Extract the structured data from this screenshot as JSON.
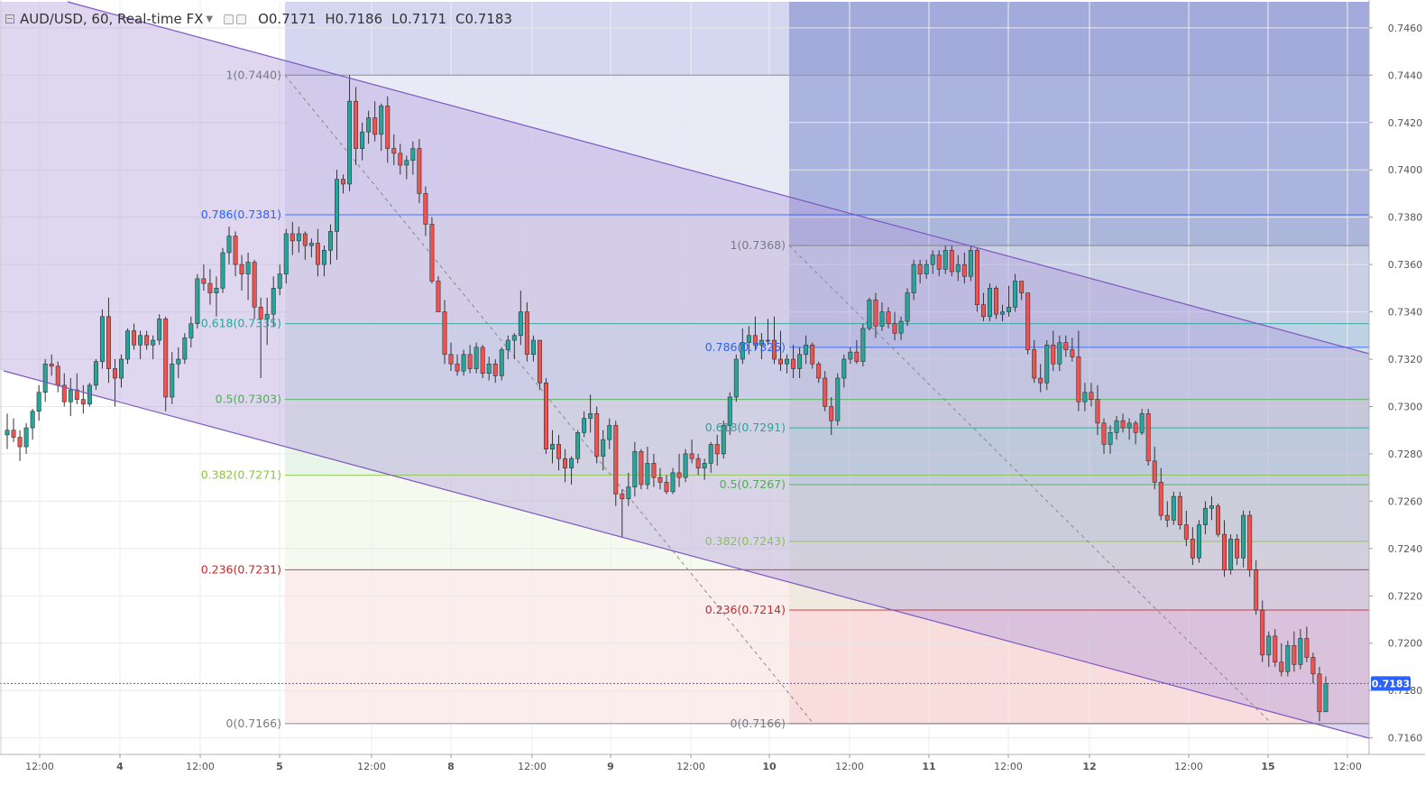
{
  "header": {
    "symbol": "AUD/USD, 60, Real-time FX",
    "open": "O0.7171",
    "high": "H0.7186",
    "low": "L0.7171",
    "close": "C0.7183"
  },
  "colors": {
    "up": "#26a69a",
    "down": "#ef5350",
    "channel_line": "#7e57c2",
    "channel_fill": "#b39ddb",
    "last_price_badge": "#2962ff"
  },
  "chart_data": {
    "type": "candlestick",
    "instrument": "AUD/USD",
    "interval": "60",
    "ylim": [
      0.7153,
      0.7471
    ],
    "y_ticks": [
      "0.7460",
      "0.7440",
      "0.7420",
      "0.7400",
      "0.7380",
      "0.7360",
      "0.7340",
      "0.7320",
      "0.7300",
      "0.7280",
      "0.7260",
      "0.7240",
      "0.7220",
      "0.7200",
      "0.7180",
      "0.7160"
    ],
    "x_ticks": [
      "12:00",
      "4",
      "12:00",
      "5",
      "12:00",
      "8",
      "12:00",
      "9",
      "12:00",
      "10",
      "12:00",
      "11",
      "12:00",
      "12",
      "12:00",
      "15",
      "12:00"
    ],
    "last_price": "0.7183",
    "fib_retracements": [
      {
        "from": 0.744,
        "to": 0.7166,
        "levels": [
          {
            "ratio": 1,
            "label": "1(0.7440)",
            "price": 0.744,
            "color": "#787b86"
          },
          {
            "ratio": 0.786,
            "label": "0.786(0.7381)",
            "price": 0.7381,
            "color": "#2962ff"
          },
          {
            "ratio": 0.618,
            "label": "0.618(0.7335)",
            "price": 0.7335,
            "color": "#26a69a"
          },
          {
            "ratio": 0.5,
            "label": "0.5(0.7303)",
            "price": 0.7303,
            "color": "#4caf50"
          },
          {
            "ratio": 0.382,
            "label": "0.382(0.7271)",
            "price": 0.7271,
            "color": "#8bc34a"
          },
          {
            "ratio": 0.236,
            "label": "0.236(0.7231)",
            "price": 0.7231,
            "color": "#c62828"
          },
          {
            "ratio": 0,
            "label": "0(0.7166)",
            "price": 0.7166,
            "color": "#787b86"
          }
        ]
      },
      {
        "from": 0.7368,
        "to": 0.7166,
        "levels": [
          {
            "ratio": 1,
            "label": "1(0.7368)",
            "price": 0.7368,
            "color": "#787b86"
          },
          {
            "ratio": 0.786,
            "label": "0.786(0.7325)",
            "price": 0.7325,
            "color": "#2962ff"
          },
          {
            "ratio": 0.618,
            "label": "0.618(0.7291)",
            "price": 0.7291,
            "color": "#26a69a"
          },
          {
            "ratio": 0.5,
            "label": "0.5(0.7267)",
            "price": 0.7267,
            "color": "#4caf50"
          },
          {
            "ratio": 0.382,
            "label": "0.382(0.7243)",
            "price": 0.7243,
            "color": "#8bc34a"
          },
          {
            "ratio": 0.236,
            "label": "0.236(0.7214)",
            "price": 0.7214,
            "color": "#c62828"
          },
          {
            "ratio": 0,
            "label": "0(0.7166)",
            "price": 0.7166,
            "color": "#787b86"
          }
        ]
      }
    ],
    "candles": [
      [
        0.7288,
        0.7297,
        0.7282,
        0.729
      ],
      [
        0.729,
        0.7295,
        0.7285,
        0.7287
      ],
      [
        0.7287,
        0.729,
        0.7277,
        0.7283
      ],
      [
        0.7283,
        0.7293,
        0.728,
        0.7291
      ],
      [
        0.7291,
        0.7299,
        0.7286,
        0.7298
      ],
      [
        0.7298,
        0.7309,
        0.7294,
        0.7306
      ],
      [
        0.7306,
        0.732,
        0.7302,
        0.7318
      ],
      [
        0.7318,
        0.7322,
        0.7313,
        0.7317
      ],
      [
        0.7317,
        0.7319,
        0.7306,
        0.7309
      ],
      [
        0.7309,
        0.7314,
        0.73,
        0.7302
      ],
      [
        0.7302,
        0.7312,
        0.7296,
        0.7307
      ],
      [
        0.7307,
        0.7314,
        0.7301,
        0.7303
      ],
      [
        0.7303,
        0.7309,
        0.7297,
        0.7301
      ],
      [
        0.7301,
        0.731,
        0.73,
        0.7309
      ],
      [
        0.7309,
        0.732,
        0.7307,
        0.7319
      ],
      [
        0.7319,
        0.7341,
        0.7316,
        0.7338
      ],
      [
        0.7338,
        0.7346,
        0.731,
        0.7316
      ],
      [
        0.7316,
        0.732,
        0.73,
        0.7312
      ],
      [
        0.7312,
        0.7322,
        0.7308,
        0.732
      ],
      [
        0.732,
        0.7333,
        0.7318,
        0.7332
      ],
      [
        0.7332,
        0.7335,
        0.7324,
        0.7326
      ],
      [
        0.7326,
        0.7332,
        0.732,
        0.733
      ],
      [
        0.733,
        0.7332,
        0.7324,
        0.7326
      ],
      [
        0.7326,
        0.733,
        0.732,
        0.7328
      ],
      [
        0.7328,
        0.7339,
        0.7326,
        0.7337
      ],
      [
        0.7337,
        0.7338,
        0.7298,
        0.7304
      ],
      [
        0.7304,
        0.7323,
        0.7301,
        0.7318
      ],
      [
        0.7318,
        0.7325,
        0.7312,
        0.732
      ],
      [
        0.732,
        0.7331,
        0.7318,
        0.7329
      ],
      [
        0.7329,
        0.7338,
        0.7325,
        0.7335
      ],
      [
        0.7335,
        0.7356,
        0.7333,
        0.7354
      ],
      [
        0.7354,
        0.736,
        0.7349,
        0.7352
      ],
      [
        0.7352,
        0.7358,
        0.7343,
        0.7348
      ],
      [
        0.7348,
        0.7355,
        0.7338,
        0.735
      ],
      [
        0.735,
        0.7367,
        0.7348,
        0.7365
      ],
      [
        0.7365,
        0.7376,
        0.736,
        0.7372
      ],
      [
        0.7372,
        0.7374,
        0.7355,
        0.736
      ],
      [
        0.736,
        0.7364,
        0.7349,
        0.7356
      ],
      [
        0.7356,
        0.7365,
        0.7345,
        0.7361
      ],
      [
        0.7361,
        0.7362,
        0.7337,
        0.7342
      ],
      [
        0.7342,
        0.7346,
        0.7312,
        0.7337
      ],
      [
        0.7337,
        0.7346,
        0.7326,
        0.7339
      ],
      [
        0.7339,
        0.7355,
        0.7334,
        0.735
      ],
      [
        0.735,
        0.736,
        0.7347,
        0.7356
      ],
      [
        0.7356,
        0.7375,
        0.7352,
        0.7373
      ],
      [
        0.7373,
        0.7378,
        0.7364,
        0.737
      ],
      [
        0.737,
        0.7376,
        0.7365,
        0.7373
      ],
      [
        0.7373,
        0.7374,
        0.7362,
        0.7368
      ],
      [
        0.7368,
        0.7371,
        0.7363,
        0.7369
      ],
      [
        0.7369,
        0.7375,
        0.7355,
        0.736
      ],
      [
        0.736,
        0.7368,
        0.7355,
        0.7366
      ],
      [
        0.7366,
        0.7377,
        0.736,
        0.7374
      ],
      [
        0.7374,
        0.74,
        0.7362,
        0.7396
      ],
      [
        0.7396,
        0.7398,
        0.739,
        0.7394
      ],
      [
        0.7394,
        0.744,
        0.7391,
        0.7429
      ],
      [
        0.7429,
        0.7435,
        0.7402,
        0.7409
      ],
      [
        0.7409,
        0.742,
        0.7404,
        0.7416
      ],
      [
        0.7416,
        0.7425,
        0.7411,
        0.7422
      ],
      [
        0.7422,
        0.7429,
        0.7412,
        0.7415
      ],
      [
        0.7415,
        0.7428,
        0.7408,
        0.7427
      ],
      [
        0.7427,
        0.7431,
        0.7403,
        0.7409
      ],
      [
        0.7409,
        0.7415,
        0.7402,
        0.7407
      ],
      [
        0.7407,
        0.7411,
        0.7398,
        0.7402
      ],
      [
        0.7402,
        0.7406,
        0.7396,
        0.7404
      ],
      [
        0.7404,
        0.7412,
        0.7398,
        0.7409
      ],
      [
        0.7409,
        0.7413,
        0.7386,
        0.739
      ],
      [
        0.739,
        0.7393,
        0.7372,
        0.7377
      ],
      [
        0.7377,
        0.738,
        0.7352,
        0.7353
      ],
      [
        0.7353,
        0.7355,
        0.734,
        0.734
      ],
      [
        0.734,
        0.7345,
        0.7318,
        0.7322
      ],
      [
        0.7322,
        0.7327,
        0.7315,
        0.7318
      ],
      [
        0.7318,
        0.7322,
        0.7313,
        0.7315
      ],
      [
        0.7315,
        0.7324,
        0.7313,
        0.7322
      ],
      [
        0.7322,
        0.7326,
        0.7314,
        0.7316
      ],
      [
        0.7316,
        0.7327,
        0.7314,
        0.7325
      ],
      [
        0.7325,
        0.7326,
        0.7312,
        0.7314
      ],
      [
        0.7314,
        0.7321,
        0.7311,
        0.7318
      ],
      [
        0.7318,
        0.732,
        0.731,
        0.7313
      ],
      [
        0.7313,
        0.7325,
        0.7311,
        0.7324
      ],
      [
        0.7324,
        0.733,
        0.732,
        0.7328
      ],
      [
        0.7328,
        0.7331,
        0.732,
        0.733
      ],
      [
        0.733,
        0.7349,
        0.7326,
        0.734
      ],
      [
        0.734,
        0.7344,
        0.7319,
        0.7322
      ],
      [
        0.7322,
        0.733,
        0.7319,
        0.7328
      ],
      [
        0.7328,
        0.7328,
        0.7307,
        0.731
      ],
      [
        0.731,
        0.7312,
        0.728,
        0.7282
      ],
      [
        0.7282,
        0.729,
        0.7276,
        0.7284
      ],
      [
        0.7284,
        0.7288,
        0.7273,
        0.7278
      ],
      [
        0.7278,
        0.7282,
        0.7268,
        0.7274
      ],
      [
        0.7274,
        0.7279,
        0.7267,
        0.7278
      ],
      [
        0.7278,
        0.729,
        0.7276,
        0.7289
      ],
      [
        0.7289,
        0.7298,
        0.7287,
        0.7295
      ],
      [
        0.7295,
        0.7305,
        0.7289,
        0.7297
      ],
      [
        0.7297,
        0.73,
        0.7276,
        0.7279
      ],
      [
        0.7279,
        0.729,
        0.7273,
        0.7286
      ],
      [
        0.7286,
        0.7295,
        0.7282,
        0.7292
      ],
      [
        0.7292,
        0.7294,
        0.7258,
        0.7263
      ],
      [
        0.7263,
        0.7265,
        0.7245,
        0.7261
      ],
      [
        0.7261,
        0.7272,
        0.7258,
        0.7266
      ],
      [
        0.7266,
        0.7285,
        0.7262,
        0.7281
      ],
      [
        0.7281,
        0.7282,
        0.7265,
        0.7267
      ],
      [
        0.7267,
        0.7283,
        0.7265,
        0.7276
      ],
      [
        0.7276,
        0.728,
        0.7266,
        0.727
      ],
      [
        0.727,
        0.7274,
        0.7265,
        0.7268
      ],
      [
        0.7268,
        0.7271,
        0.7263,
        0.7264
      ],
      [
        0.7264,
        0.7274,
        0.7263,
        0.7272
      ],
      [
        0.7272,
        0.728,
        0.7266,
        0.727
      ],
      [
        0.727,
        0.7282,
        0.7268,
        0.728
      ],
      [
        0.728,
        0.7286,
        0.7276,
        0.7278
      ],
      [
        0.7278,
        0.728,
        0.7271,
        0.7274
      ],
      [
        0.7274,
        0.7278,
        0.7269,
        0.7276
      ],
      [
        0.7276,
        0.7285,
        0.7272,
        0.7284
      ],
      [
        0.7284,
        0.7288,
        0.7275,
        0.728
      ],
      [
        0.728,
        0.7294,
        0.7278,
        0.7292
      ],
      [
        0.7292,
        0.7306,
        0.7288,
        0.7304
      ],
      [
        0.7304,
        0.7322,
        0.7302,
        0.732
      ],
      [
        0.732,
        0.7333,
        0.7318,
        0.7327
      ],
      [
        0.7327,
        0.7334,
        0.7322,
        0.733
      ],
      [
        0.733,
        0.7338,
        0.7324,
        0.7326
      ],
      [
        0.7326,
        0.7331,
        0.732,
        0.7328
      ],
      [
        0.7328,
        0.7337,
        0.7326,
        0.7328
      ],
      [
        0.7328,
        0.7338,
        0.7318,
        0.732
      ],
      [
        0.732,
        0.7332,
        0.7315,
        0.7318
      ],
      [
        0.7318,
        0.7322,
        0.7314,
        0.732
      ],
      [
        0.732,
        0.7326,
        0.7312,
        0.7316
      ],
      [
        0.7316,
        0.7325,
        0.7312,
        0.7322
      ],
      [
        0.7322,
        0.733,
        0.7318,
        0.7326
      ],
      [
        0.7326,
        0.7327,
        0.7316,
        0.7318
      ],
      [
        0.7318,
        0.7319,
        0.731,
        0.7312
      ],
      [
        0.7312,
        0.7315,
        0.7298,
        0.73
      ],
      [
        0.73,
        0.7304,
        0.7288,
        0.7294
      ],
      [
        0.7294,
        0.7314,
        0.7292,
        0.7312
      ],
      [
        0.7312,
        0.7322,
        0.7308,
        0.732
      ],
      [
        0.732,
        0.7325,
        0.7318,
        0.7323
      ],
      [
        0.7323,
        0.7328,
        0.7318,
        0.7319
      ],
      [
        0.7319,
        0.7335,
        0.7317,
        0.7333
      ],
      [
        0.7333,
        0.7346,
        0.7332,
        0.7345
      ],
      [
        0.7345,
        0.7348,
        0.7329,
        0.7334
      ],
      [
        0.7334,
        0.7344,
        0.7332,
        0.734
      ],
      [
        0.734,
        0.7342,
        0.7333,
        0.7335
      ],
      [
        0.7335,
        0.734,
        0.7328,
        0.7331
      ],
      [
        0.7331,
        0.7338,
        0.7328,
        0.7336
      ],
      [
        0.7336,
        0.735,
        0.7334,
        0.7348
      ],
      [
        0.7348,
        0.7362,
        0.7345,
        0.736
      ],
      [
        0.736,
        0.7362,
        0.7352,
        0.7356
      ],
      [
        0.7356,
        0.7362,
        0.7354,
        0.736
      ],
      [
        0.736,
        0.7366,
        0.7356,
        0.7364
      ],
      [
        0.7364,
        0.7366,
        0.7355,
        0.7358
      ],
      [
        0.7358,
        0.7368,
        0.7356,
        0.7366
      ],
      [
        0.7366,
        0.7368,
        0.7355,
        0.7357
      ],
      [
        0.7357,
        0.7364,
        0.7353,
        0.736
      ],
      [
        0.736,
        0.7365,
        0.7352,
        0.7355
      ],
      [
        0.7355,
        0.7368,
        0.7353,
        0.7366
      ],
      [
        0.7366,
        0.7367,
        0.734,
        0.7343
      ],
      [
        0.7343,
        0.7348,
        0.7336,
        0.7338
      ],
      [
        0.7338,
        0.7352,
        0.7336,
        0.735
      ],
      [
        0.735,
        0.7351,
        0.7337,
        0.7339
      ],
      [
        0.7339,
        0.7343,
        0.7336,
        0.734
      ],
      [
        0.734,
        0.7351,
        0.7338,
        0.7342
      ],
      [
        0.7342,
        0.7356,
        0.734,
        0.7353
      ],
      [
        0.7353,
        0.7353,
        0.7345,
        0.7348
      ],
      [
        0.7348,
        0.7348,
        0.7322,
        0.7324
      ],
      [
        0.7324,
        0.7328,
        0.731,
        0.7312
      ],
      [
        0.7312,
        0.7318,
        0.7306,
        0.731
      ],
      [
        0.731,
        0.7328,
        0.7307,
        0.7326
      ],
      [
        0.7326,
        0.7332,
        0.7315,
        0.7318
      ],
      [
        0.7318,
        0.733,
        0.7315,
        0.7327
      ],
      [
        0.7327,
        0.733,
        0.7321,
        0.7324
      ],
      [
        0.7324,
        0.7329,
        0.7319,
        0.7321
      ],
      [
        0.7321,
        0.7332,
        0.7298,
        0.7302
      ],
      [
        0.7302,
        0.731,
        0.7298,
        0.7306
      ],
      [
        0.7306,
        0.731,
        0.73,
        0.7303
      ],
      [
        0.7303,
        0.7309,
        0.7288,
        0.7293
      ],
      [
        0.7293,
        0.7295,
        0.728,
        0.7284
      ],
      [
        0.7284,
        0.7292,
        0.728,
        0.7289
      ],
      [
        0.7289,
        0.7296,
        0.7286,
        0.7294
      ],
      [
        0.7294,
        0.7297,
        0.7289,
        0.7291
      ],
      [
        0.7291,
        0.7295,
        0.7286,
        0.7293
      ],
      [
        0.7293,
        0.7294,
        0.7284,
        0.7289
      ],
      [
        0.7289,
        0.7299,
        0.7288,
        0.7297
      ],
      [
        0.7297,
        0.7299,
        0.7275,
        0.7277
      ],
      [
        0.7277,
        0.7283,
        0.7265,
        0.7268
      ],
      [
        0.7268,
        0.7274,
        0.7252,
        0.7254
      ],
      [
        0.7254,
        0.726,
        0.7249,
        0.7252
      ],
      [
        0.7252,
        0.7264,
        0.725,
        0.7262
      ],
      [
        0.7262,
        0.7264,
        0.7248,
        0.725
      ],
      [
        0.725,
        0.7256,
        0.7241,
        0.7244
      ],
      [
        0.7244,
        0.7249,
        0.7233,
        0.7236
      ],
      [
        0.7236,
        0.7252,
        0.7234,
        0.725
      ],
      [
        0.725,
        0.726,
        0.7246,
        0.7257
      ],
      [
        0.7257,
        0.7262,
        0.7252,
        0.7258
      ],
      [
        0.7258,
        0.7259,
        0.7245,
        0.7246
      ],
      [
        0.7246,
        0.7252,
        0.7228,
        0.7231
      ],
      [
        0.7231,
        0.7246,
        0.7229,
        0.7244
      ],
      [
        0.7244,
        0.7246,
        0.7233,
        0.7236
      ],
      [
        0.7236,
        0.7256,
        0.7232,
        0.7254
      ],
      [
        0.7254,
        0.7256,
        0.7228,
        0.7231
      ],
      [
        0.7231,
        0.7235,
        0.7212,
        0.7214
      ],
      [
        0.7214,
        0.7218,
        0.7192,
        0.7195
      ],
      [
        0.7195,
        0.7205,
        0.719,
        0.7203
      ],
      [
        0.7203,
        0.7206,
        0.719,
        0.7192
      ],
      [
        0.7192,
        0.72,
        0.7186,
        0.7188
      ],
      [
        0.7188,
        0.7201,
        0.7186,
        0.7199
      ],
      [
        0.7199,
        0.7205,
        0.7188,
        0.7191
      ],
      [
        0.7191,
        0.7206,
        0.7189,
        0.7202
      ],
      [
        0.7202,
        0.7207,
        0.7192,
        0.7194
      ],
      [
        0.7194,
        0.7196,
        0.7183,
        0.7187
      ],
      [
        0.7187,
        0.719,
        0.7167,
        0.7171
      ],
      [
        0.7171,
        0.7186,
        0.7171,
        0.7183
      ]
    ]
  }
}
